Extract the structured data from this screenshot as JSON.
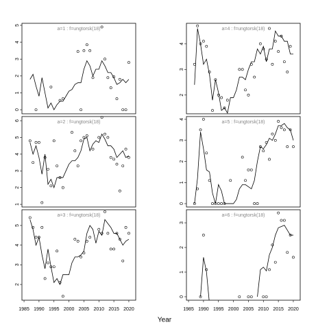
{
  "x_label": "Year",
  "chart_data": [
    {
      "type": "line",
      "title": "a=1 : f=ungtorsk(18)",
      "x": [
        1987,
        1988,
        1989,
        1990,
        1991,
        1992,
        1993,
        1994,
        1995,
        1996,
        1997,
        1998,
        1999,
        2000,
        2001,
        2002,
        2003,
        2004,
        2005,
        2006,
        2007,
        2008,
        2009,
        2010,
        2011,
        2012,
        2013,
        2014,
        2015,
        2016,
        2017,
        2018,
        2019,
        2020
      ],
      "line": [
        1.8,
        2.1,
        1.4,
        0.8,
        1.9,
        1.0,
        0.1,
        0.4,
        0.0,
        0.3,
        0.5,
        0.5,
        0.8,
        1.1,
        1.2,
        1.5,
        1.6,
        1.6,
        2.4,
        2.9,
        2.6,
        2.0,
        2.4,
        2.4,
        2.9,
        2.6,
        2.2,
        2.2,
        1.9,
        1.5,
        1.6,
        1.8,
        1.6,
        1.8
      ],
      "points": [
        null,
        null,
        0,
        null,
        null,
        null,
        null,
        1.35,
        null,
        null,
        0.55,
        0.65,
        null,
        null,
        null,
        null,
        3.45,
        0,
        3.5,
        3.85,
        3.5,
        1.9,
        null,
        null,
        4.9,
        3.0,
        1.9,
        1.3,
        1.95,
        0.65,
        1.8,
        0,
        0,
        2.8
      ],
      "color": "#000000",
      "xlim": [
        1984.3,
        2022.3
      ],
      "ylim": [
        -0.24,
        5.12
      ],
      "yticks": [
        0,
        1,
        2,
        3,
        4,
        5
      ]
    },
    {
      "type": "line",
      "title": "a=2 : f=ungtorsk(18)",
      "x": [
        1987,
        1988,
        1989,
        1990,
        1991,
        1992,
        1993,
        1994,
        1995,
        1996,
        1997,
        1998,
        1999,
        2000,
        2001,
        2002,
        2003,
        2004,
        2005,
        2006,
        2007,
        2008,
        2009,
        2010,
        2011,
        2012,
        2013,
        2014,
        2015,
        2016,
        2017,
        2018,
        2019,
        2020
      ],
      "line": [
        4.7,
        4.0,
        4.5,
        3.8,
        2.8,
        4.0,
        2.2,
        2.5,
        2.0,
        2.6,
        2.6,
        2.6,
        3.0,
        3.4,
        3.6,
        3.6,
        3.8,
        4.2,
        4.9,
        5.0,
        4.2,
        4.6,
        4.8,
        4.7,
        5.2,
        4.9,
        4.5,
        4.5,
        4.3,
        3.8,
        4.0,
        4.2,
        3.8,
        3.9
      ],
      "points": [
        4.8,
        3.5,
        4.7,
        4.7,
        1.1,
        3.8,
        3.1,
        2.1,
        4.8,
        3.3,
        2.6,
        2.0,
        null,
        null,
        5.3,
        4.2,
        3.3,
        4.8,
        5.0,
        5.1,
        null,
        4.3,
        null,
        5.0,
        6.2,
        5.2,
        5.0,
        3.8,
        3.7,
        3.4,
        1.8,
        3.3,
        4.3,
        3.8
      ],
      "color": "#000000",
      "xlim": [
        1984.3,
        2022.3
      ],
      "ylim": [
        0.84,
        6.25
      ],
      "yticks": [
        1,
        2,
        3,
        4,
        5,
        6
      ]
    },
    {
      "type": "line",
      "title": "a=3 : f=ungtorsk(18)",
      "x": [
        1987,
        1988,
        1989,
        1990,
        1991,
        1992,
        1993,
        1994,
        1995,
        1996,
        1997,
        1998,
        1999,
        2000,
        2001,
        2002,
        2003,
        2004,
        2005,
        2006,
        2007,
        2008,
        2009,
        2010,
        2011,
        2012,
        2013,
        2014,
        2015,
        2016,
        2017,
        2018,
        2019,
        2020
      ],
      "line": [
        5.3,
        4.8,
        4.0,
        4.4,
        3.5,
        2.8,
        3.8,
        2.9,
        2.1,
        2.3,
        2.0,
        2.5,
        2.5,
        2.5,
        3.1,
        3.4,
        3.4,
        3.5,
        3.7,
        4.6,
        5.0,
        4.8,
        4.1,
        4.7,
        4.5,
        5.3,
        5.1,
        4.9,
        4.6,
        4.6,
        4.3,
        4.0,
        4.2,
        4.3
      ],
      "points": [
        5.4,
        4.9,
        4.4,
        4.4,
        4.9,
        2.3,
        3.1,
        2.9,
        2.9,
        3.7,
        2.1,
        1.4,
        null,
        null,
        null,
        4.3,
        4.2,
        3.4,
        3.6,
        4.2,
        4.4,
        null,
        null,
        4.8,
        4.6,
        5.7,
        4.6,
        3.8,
        3.8,
        4.6,
        4.3,
        3.2,
        4.9,
        4.6
      ],
      "color": "#000000",
      "xlim": [
        1984.3,
        2022.3
      ],
      "ylim": [
        1.2,
        5.8
      ],
      "yticks": [
        2,
        3,
        4,
        5
      ],
      "xticks": [
        1985,
        1990,
        1995,
        2000,
        2005,
        2010,
        2015,
        2020
      ]
    },
    {
      "type": "line",
      "title": "a=4 : f=ungtorsk(18)",
      "x": [
        1987,
        1988,
        1989,
        1990,
        1991,
        1992,
        1993,
        1994,
        1995,
        1996,
        1997,
        1998,
        1999,
        2000,
        2001,
        2002,
        2003,
        2004,
        2005,
        2006,
        2007,
        2008,
        2009,
        2010,
        2011,
        2012,
        2013,
        2014,
        2015,
        2016,
        2017,
        2018,
        2019,
        2020
      ],
      "line": [
        2.4,
        4.6,
        4.0,
        3.2,
        3.4,
        2.8,
        1.8,
        2.6,
        2.1,
        1.4,
        1.5,
        1.3,
        1.9,
        1.9,
        2.2,
        2.7,
        2.7,
        2.6,
        3.0,
        3.3,
        3.3,
        3.8,
        3.6,
        3.9,
        3.3,
        3.8,
        3.8,
        4.5,
        4.3,
        4.3,
        4.1,
        4.1,
        3.6,
        3.6
      ],
      "points": [
        3.2,
        4.7,
        4.0,
        4.1,
        3.9,
        2.9,
        1.4,
        2.6,
        2.0,
        1.9,
        1.5,
        1.8,
        null,
        null,
        null,
        3.0,
        3.0,
        2.2,
        2.0,
        3.2,
        2.7,
        null,
        4.0,
        3.8,
        3.4,
        4.6,
        3.2,
        4.1,
        3.7,
        4.3,
        3.3,
        2.9,
        3.9,
        null
      ],
      "color": "#000000",
      "xlim": [
        1984.3,
        2022.3
      ],
      "ylim": [
        1.27,
        4.8
      ],
      "yticks": [
        2,
        3,
        4
      ]
    },
    {
      "type": "line",
      "title": "a=5 : f=ungtorsk(18)",
      "x": [
        1987,
        1988,
        1989,
        1990,
        1991,
        1992,
        1993,
        1994,
        1995,
        1996,
        1997,
        1998,
        1999,
        2000,
        2001,
        2002,
        2003,
        2004,
        2005,
        2006,
        2007,
        2008,
        2009,
        2010,
        2011,
        2012,
        2013,
        2014,
        2015,
        2016,
        2017,
        2018,
        2019,
        2020
      ],
      "line": [
        0,
        1.2,
        3.4,
        2.6,
        1.6,
        1.5,
        0.5,
        0,
        0.9,
        0.6,
        0,
        0,
        0,
        0,
        0.2,
        0.7,
        0.9,
        0.9,
        0.8,
        0.7,
        1.1,
        2.0,
        2.7,
        2.6,
        2.8,
        3.1,
        3.0,
        3.3,
        3.7,
        3.7,
        3.8,
        3.6,
        3.5,
        3.0
      ],
      "points": [
        0,
        0.7,
        3.5,
        4.0,
        2.4,
        1.1,
        0,
        0,
        0,
        0,
        0,
        null,
        1.1,
        null,
        null,
        null,
        2.2,
        1.1,
        1.6,
        1.6,
        0,
        0,
        2.7,
        2.5,
        2.9,
        2.1,
        3.3,
        3.0,
        3.9,
        3.6,
        3.5,
        2.7,
        3.5,
        2.7
      ],
      "color": "#000000",
      "xlim": [
        1984.3,
        2022.3
      ],
      "ylim": [
        -0.16,
        4.13
      ],
      "yticks": [
        0,
        1,
        2,
        3,
        4
      ]
    },
    {
      "type": "line",
      "title": "a=6 : f=ungtorsk(18)",
      "x": [
        1987,
        1988,
        1989,
        1990,
        1991,
        1992,
        1993,
        1994,
        1995,
        1996,
        1997,
        1998,
        1999,
        2000,
        2001,
        2002,
        2003,
        2004,
        2005,
        2006,
        2007,
        2008,
        2009,
        2010,
        2011,
        2012,
        2013,
        2014,
        2015,
        2016,
        2017,
        2018,
        2019,
        2020
      ],
      "line": [
        null,
        null,
        0,
        1.6,
        1.0,
        -0.3,
        null,
        null,
        null,
        null,
        null,
        null,
        null,
        null,
        null,
        null,
        null,
        null,
        null,
        null,
        null,
        0,
        1.1,
        1.2,
        1.05,
        1.7,
        2.0,
        2.5,
        2.8,
        2.85,
        2.9,
        2.7,
        2.5,
        2.5
      ],
      "points": [
        null,
        null,
        0,
        2.5,
        1.1,
        null,
        null,
        null,
        null,
        null,
        null,
        null,
        null,
        null,
        null,
        0,
        null,
        null,
        0,
        0,
        null,
        null,
        null,
        0,
        0,
        1.1,
        2.1,
        1.4,
        3.4,
        3.1,
        3.1,
        1.8,
        2.5,
        1.6
      ],
      "color": "#000000",
      "xlim": [
        1984.3,
        2022.3
      ],
      "ylim": [
        -0.14,
        3.53
      ],
      "yticks": [
        0,
        1,
        2,
        3
      ],
      "xticks": [
        1985,
        1990,
        1995,
        2000,
        2005,
        2010,
        2015,
        2020
      ]
    }
  ]
}
